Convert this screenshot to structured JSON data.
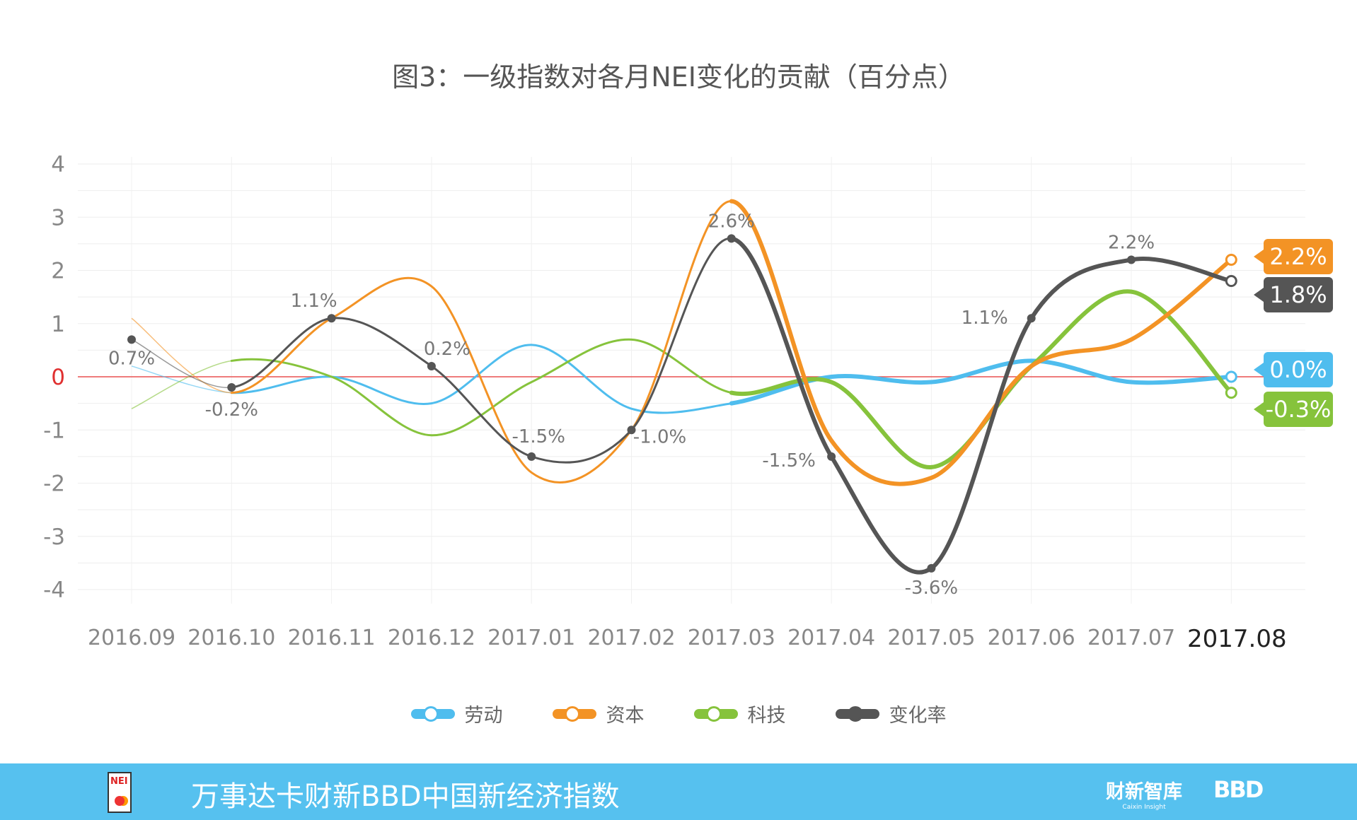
{
  "chart_data": {
    "type": "line",
    "title": "图3：一级指数对各月NEI变化的贡献（百分点）",
    "categories": [
      "2016.09",
      "2016.10",
      "2016.11",
      "2016.12",
      "2017.01",
      "2017.02",
      "2017.03",
      "2017.04",
      "2017.05",
      "2017.06",
      "2017.07",
      "2017.08"
    ],
    "yticks": [
      "4",
      "3",
      "2",
      "1",
      "0",
      "-1",
      "-2",
      "-3",
      "-4"
    ],
    "ylim": [
      -4,
      4
    ],
    "grid": true,
    "legend_position": "bottom",
    "series": [
      {
        "name": "劳动",
        "color": "#4fbdee",
        "values": [
          0.2,
          -0.3,
          0.0,
          -0.5,
          0.6,
          -0.6,
          -0.5,
          0.0,
          -0.1,
          0.3,
          -0.1,
          0.0
        ],
        "end_label": "0.0%"
      },
      {
        "name": "资本",
        "color": "#f39325",
        "values": [
          1.1,
          -0.3,
          1.1,
          1.7,
          -1.8,
          -1.0,
          3.3,
          -1.2,
          -1.9,
          0.2,
          0.7,
          2.2
        ],
        "end_label": "2.2%"
      },
      {
        "name": "科技",
        "color": "#86c33c",
        "values": [
          -0.6,
          0.3,
          0.0,
          -1.1,
          -0.1,
          0.7,
          -0.3,
          -0.1,
          -1.7,
          0.2,
          1.6,
          -0.3
        ],
        "end_label": "-0.3%"
      },
      {
        "name": "变化率",
        "color": "#555555",
        "values": [
          0.7,
          -0.2,
          1.1,
          0.2,
          -1.5,
          -1.0,
          2.6,
          -1.5,
          -3.6,
          1.1,
          2.2,
          1.8
        ],
        "end_label": "1.8%",
        "data_labels": [
          "0.7%",
          "-0.2%",
          "1.1%",
          "0.2%",
          "-1.5%",
          "-1.0%",
          "2.6%",
          "-1.5%",
          "-3.6%",
          "1.1%",
          "2.2%"
        ]
      }
    ],
    "zero_line_color": "#e85050"
  },
  "footer": {
    "title": "万事达卡财新BBD中国新经济指数",
    "logo_left": "NEI",
    "logo_caixin": "财新智库",
    "logo_caixin_sub": "Caixin Insight",
    "logo_bbd": "BBD",
    "background": "#56c1ef"
  }
}
